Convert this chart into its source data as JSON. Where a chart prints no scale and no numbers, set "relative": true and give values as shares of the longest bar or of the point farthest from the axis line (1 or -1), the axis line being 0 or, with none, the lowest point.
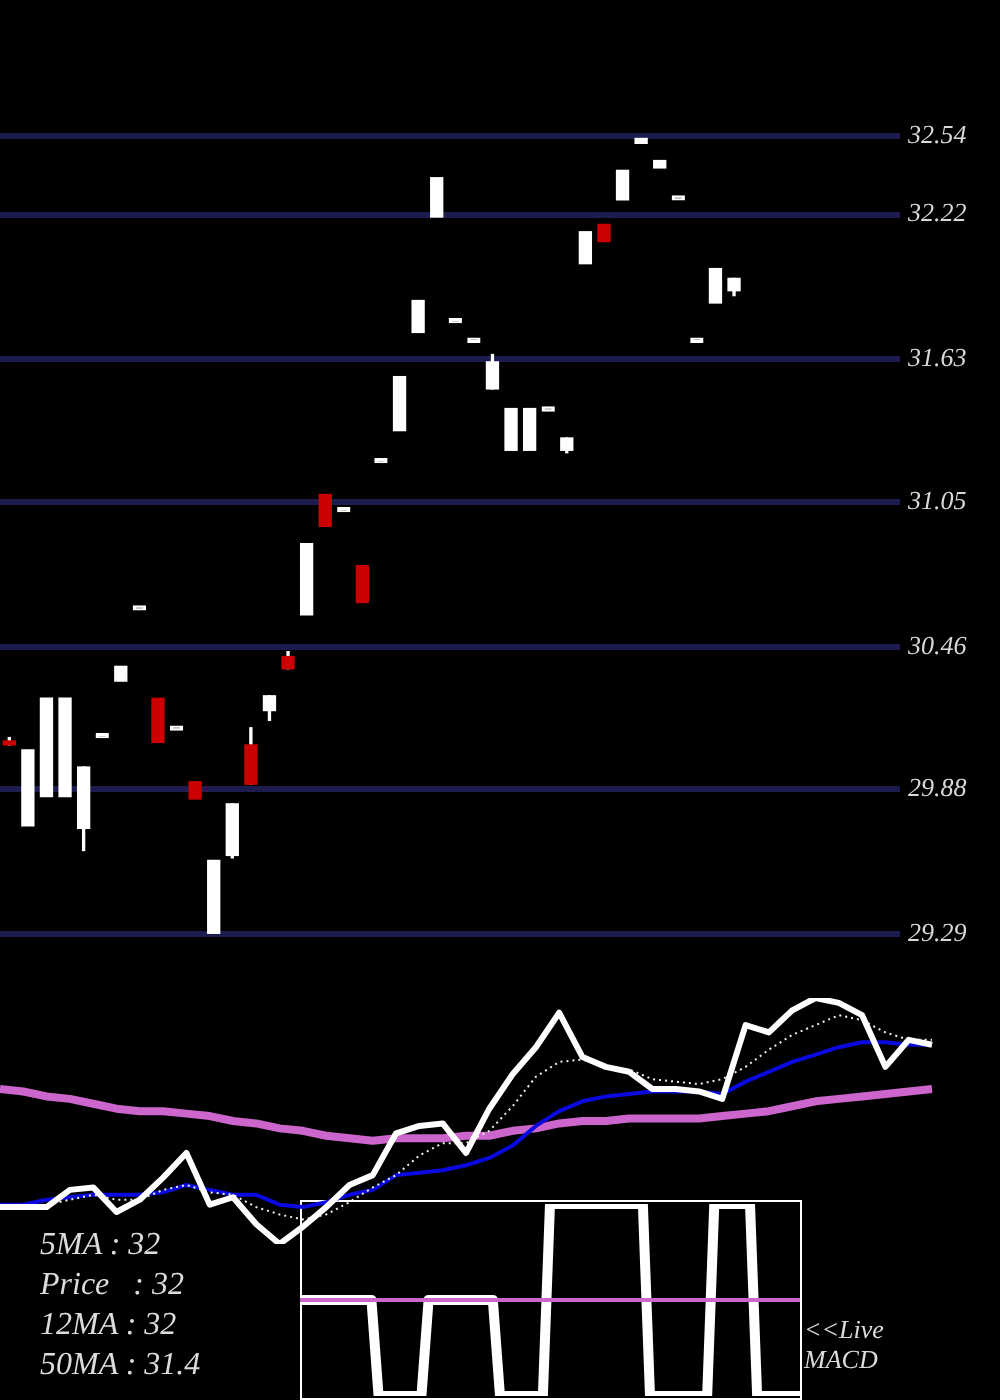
{
  "chart_data": [
    {
      "type": "candlestick",
      "categories": [
        null,
        null,
        null,
        null,
        null,
        null,
        null,
        null,
        null,
        null,
        null,
        null,
        null,
        null,
        null,
        null,
        null,
        null,
        null,
        null,
        null,
        null,
        null,
        null,
        null,
        null,
        null,
        null,
        null,
        null,
        null,
        null,
        null,
        null,
        null,
        null,
        null,
        null,
        null,
        null,
        null,
        null,
        null,
        null,
        null,
        null,
        null,
        null
      ],
      "ohlc": [
        [
          30.07,
          30.09,
          30.06,
          30.06
        ],
        [
          29.73,
          30.04,
          29.73,
          30.04
        ],
        [
          29.85,
          30.25,
          29.85,
          30.25
        ],
        [
          29.85,
          30.25,
          29.85,
          30.25
        ],
        [
          29.72,
          29.97,
          29.63,
          29.97
        ],
        [
          30.09,
          30.09,
          30.09,
          30.09
        ],
        [
          30.32,
          30.38,
          30.32,
          30.38
        ],
        [
          30.61,
          30.61,
          30.61,
          30.61
        ],
        [
          30.25,
          30.25,
          30.07,
          30.07
        ],
        [
          30.12,
          30.12,
          30.12,
          30.12
        ],
        [
          29.91,
          29.91,
          29.84,
          29.84
        ],
        [
          29.29,
          29.59,
          29.29,
          29.59
        ],
        [
          29.61,
          29.82,
          29.6,
          29.82
        ],
        [
          30.06,
          30.13,
          29.9,
          29.9
        ],
        [
          30.2,
          30.26,
          30.16,
          30.26
        ],
        [
          30.42,
          30.44,
          30.37,
          30.37
        ],
        [
          30.59,
          30.88,
          30.59,
          30.88
        ],
        [
          31.08,
          31.08,
          30.95,
          30.95
        ],
        [
          31.01,
          31.01,
          31.01,
          31.01
        ],
        [
          30.79,
          30.79,
          30.64,
          30.64
        ],
        [
          31.21,
          31.21,
          31.21,
          31.21
        ],
        [
          31.34,
          31.56,
          31.34,
          31.56
        ],
        [
          31.74,
          31.87,
          31.74,
          31.87
        ],
        [
          32.21,
          32.37,
          32.21,
          32.37
        ],
        [
          31.78,
          31.78,
          31.78,
          31.78
        ],
        [
          31.7,
          31.7,
          31.7,
          31.7
        ],
        [
          31.51,
          31.65,
          31.51,
          31.62
        ],
        [
          31.26,
          31.43,
          31.26,
          31.43
        ],
        [
          31.26,
          31.43,
          31.26,
          31.43
        ],
        [
          31.42,
          31.42,
          31.42,
          31.42
        ],
        [
          31.26,
          31.31,
          31.25,
          31.31
        ],
        [
          32.02,
          32.15,
          32.02,
          32.15
        ],
        [
          32.18,
          32.18,
          32.11,
          32.11
        ],
        [
          32.28,
          32.4,
          32.28,
          32.4
        ],
        [
          32.51,
          32.53,
          32.51,
          32.53
        ],
        [
          32.41,
          32.44,
          32.41,
          32.44
        ],
        [
          32.28,
          32.28,
          32.28,
          32.28
        ],
        [
          31.7,
          31.7,
          31.7,
          31.7
        ],
        [
          31.86,
          32,
          31.86,
          32
        ],
        [
          31.91,
          31.96,
          31.89,
          31.96
        ],
        null,
        null,
        null,
        null,
        null,
        null,
        null,
        null
      ],
      "colors": [
        "#cc0000",
        "#ffffff",
        "#ffffff",
        "#ffffff",
        "#ffffff",
        "#ffffff",
        "#ffffff",
        "#ffffff",
        "#cc0000",
        "#ffffff",
        "#cc0000",
        "#ffffff",
        "#ffffff",
        "#cc0000",
        "#ffffff",
        "#cc0000",
        "#ffffff",
        "#cc0000",
        "#ffffff",
        "#cc0000",
        "#ffffff",
        "#ffffff",
        "#ffffff",
        "#ffffff",
        "#ffffff",
        "#ffffff",
        "#ffffff",
        "#ffffff",
        "#ffffff",
        "#ffffff",
        "#ffffff",
        "#ffffff",
        "#cc0000",
        "#ffffff",
        "#ffffff",
        "#ffffff",
        "#ffffff",
        "#ffffff",
        "#ffffff",
        "#ffffff",
        null,
        null,
        null,
        null,
        null,
        null,
        null,
        null
      ],
      "ylim": [
        29.29,
        32.54
      ],
      "yticks": [
        29.29,
        29.88,
        30.46,
        31.05,
        31.63,
        32.22,
        32.54
      ],
      "grid": "y"
    },
    {
      "type": "line",
      "relative": true,
      "categories": [
        null,
        null,
        null,
        null,
        null,
        null,
        null,
        null,
        null,
        null,
        null,
        null,
        null,
        null,
        null,
        null,
        null,
        null,
        null,
        null,
        null,
        null,
        null,
        null,
        null,
        null,
        null,
        null,
        null,
        null,
        null,
        null,
        null,
        null,
        null,
        null,
        null,
        null,
        null,
        null,
        null
      ],
      "series": [
        {
          "color": "#ffffff",
          "values": [
            0.15,
            0.15,
            0.15,
            0.22,
            0.23,
            0.13,
            0.18,
            0.27,
            0.37,
            0.16,
            0.19,
            0.08,
            0,
            0.07,
            0.15,
            0.24,
            0.28,
            0.45,
            0.48,
            0.49,
            0.37,
            0.55,
            0.69,
            0.8,
            0.94,
            0.76,
            0.72,
            0.7,
            0.63,
            0.63,
            0.62,
            0.59,
            0.89,
            0.86,
            0.95,
            1,
            0.98,
            0.93,
            0.72,
            0.83,
            0.81
          ]
        },
        {
          "color": "#f0f0f0",
          "line_style": "dotted",
          "values": [
            0.15,
            0.15,
            0.16,
            0.18,
            0.2,
            0.18,
            0.18,
            0.22,
            0.24,
            0.21,
            0.2,
            0.15,
            0.12,
            0.1,
            0.12,
            0.17,
            0.23,
            0.28,
            0.36,
            0.41,
            0.41,
            0.46,
            0.56,
            0.68,
            0.74,
            0.75,
            0.72,
            0.71,
            0.67,
            0.66,
            0.65,
            0.67,
            0.72,
            0.79,
            0.85,
            0.89,
            0.93,
            0.91,
            0.86,
            0.83,
            0.83
          ]
        },
        {
          "color": "#0a0ae0",
          "values": [
            0.16,
            0.16,
            0.18,
            0.19,
            0.2,
            0.2,
            0.2,
            0.21,
            0.24,
            0.22,
            0.2,
            0.2,
            0.16,
            0.15,
            0.17,
            0.2,
            0.22,
            0.28,
            0.29,
            0.3,
            0.32,
            0.35,
            0.4,
            0.48,
            0.54,
            0.58,
            0.6,
            0.61,
            0.62,
            0.62,
            0.62,
            0.61,
            0.66,
            0.7,
            0.74,
            0.77,
            0.8,
            0.82,
            0.82,
            0.81,
            0.81
          ]
        },
        {
          "color": "#cc66cc",
          "values": [
            0.63,
            0.62,
            0.6,
            0.59,
            0.57,
            0.55,
            0.54,
            0.54,
            0.53,
            0.52,
            0.5,
            0.49,
            0.47,
            0.46,
            0.44,
            0.43,
            0.42,
            0.43,
            0.43,
            0.43,
            0.44,
            0.44,
            0.46,
            0.47,
            0.49,
            0.5,
            0.5,
            0.51,
            0.51,
            0.51,
            0.51,
            0.52,
            0.53,
            0.54,
            0.56,
            0.58,
            0.59,
            0.6,
            0.61,
            0.62,
            0.63
          ]
        }
      ],
      "annotations": [
        "5MA : 32",
        "Price   : 32",
        "12MA : 32",
        "50MA : 31.4"
      ]
    },
    {
      "type": "line",
      "relative": true,
      "categories": [
        null,
        null,
        null,
        null,
        null,
        null,
        null,
        null,
        null,
        null,
        null,
        null,
        null,
        null,
        null,
        null,
        null,
        null,
        null,
        null,
        null,
        null,
        null,
        null,
        null,
        null,
        null,
        null,
        null,
        null,
        null,
        null,
        null,
        null,
        null,
        null,
        null,
        null,
        null,
        null,
        null,
        null,
        null,
        null,
        null,
        null,
        null,
        null,
        null,
        null,
        null,
        null,
        null,
        null,
        null,
        null,
        null,
        null,
        null,
        null,
        null,
        null,
        null,
        null,
        null,
        null,
        null,
        null,
        null,
        null,
        null
      ],
      "series": [
        {
          "color": "#ffffff",
          "values": [
            0.5,
            0.5,
            0.5,
            0.5,
            0.5,
            0.5,
            0.5,
            0.5,
            0.5,
            0.5,
            0.5,
            0,
            0,
            0,
            0,
            0,
            0,
            0,
            0.5,
            0.5,
            0.5,
            0.5,
            0.5,
            0.5,
            0.5,
            0.5,
            0.5,
            0.5,
            0,
            0,
            0,
            0,
            0,
            0,
            0,
            1,
            1,
            1,
            1,
            1,
            1,
            1,
            1,
            1,
            1,
            1,
            1,
            1,
            1,
            0,
            0,
            0,
            0,
            0,
            0,
            0,
            0,
            0,
            1,
            1,
            1,
            1,
            1,
            1,
            0,
            0,
            0,
            0,
            0,
            0,
            0
          ]
        },
        {
          "color": "#cc66cc",
          "values": [
            0.5,
            0.5,
            0.5,
            0.5,
            0.5,
            0.5,
            0.5,
            0.5,
            0.5,
            0.5,
            0.5,
            0.5,
            0.5,
            0.5,
            0.5,
            0.5,
            0.5,
            0.5,
            0.5,
            0.5,
            0.5,
            0.5,
            0.5,
            0.5,
            0.5,
            0.5,
            0.5,
            0.5,
            0.5,
            0.5,
            0.5,
            0.5,
            0.5,
            0.5,
            0.5,
            0.5,
            0.5,
            0.5,
            0.5,
            0.5,
            0.5,
            0.5,
            0.5,
            0.5,
            0.5,
            0.5,
            0.5,
            0.5,
            0.5,
            0.5,
            0.5,
            0.5,
            0.5,
            0.5,
            0.5,
            0.5,
            0.5,
            0.5,
            0.5,
            0.5,
            0.5,
            0.5,
            0.5,
            0.5,
            0.5,
            0.5,
            0.5,
            0.5,
            0.5,
            0.5,
            0.5
          ]
        }
      ],
      "annotations": [
        "<<Live MACD"
      ]
    }
  ]
}
